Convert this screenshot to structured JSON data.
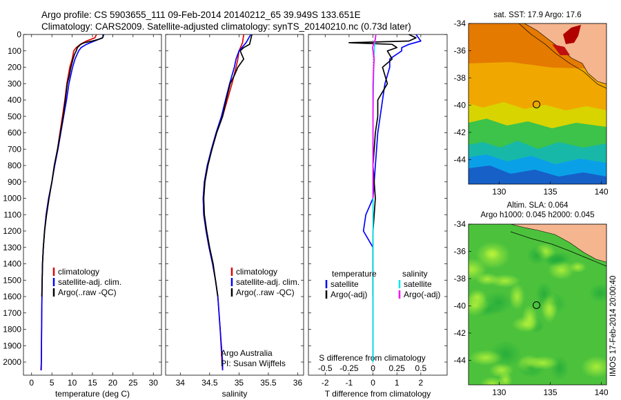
{
  "header": {
    "line1": "Argo profile: CS 5903655_111 09-Feb-2014 20140212_65 39.949S 133.651E",
    "line2": "Climatology: CARS2009. Satellite-adjusted climatology: synTS_20140210.nc (0.73d later)"
  },
  "side_stamp": "IMOS 17-Feb-2014 20:00:40",
  "colors": {
    "clim": "#dd0000",
    "sat": "#0000ff",
    "argo": "#000000",
    "sal_sat": "#00e5ee",
    "sal_argo": "#ff00ff"
  },
  "chart_data": [
    {
      "type": "line",
      "id": "temperature",
      "xlabel": "temperature (deg C)",
      "xlim": [
        -2,
        32
      ],
      "ylim": [
        2080,
        0
      ],
      "xticks": [
        0,
        5,
        10,
        15,
        20,
        25,
        30
      ],
      "yticks": [
        0,
        100,
        200,
        300,
        400,
        500,
        600,
        700,
        800,
        900,
        1000,
        1100,
        1200,
        1300,
        1400,
        1500,
        1600,
        1700,
        1800,
        1900,
        2000
      ],
      "legend": [
        "climatology",
        "satellite-adj. clim.",
        "Argo(..raw -QC)"
      ],
      "series": [
        {
          "name": "climatology",
          "color": "#dd0000",
          "depth": [
            0,
            20,
            40,
            60,
            80,
            100,
            150,
            200,
            300,
            400,
            500,
            600,
            700,
            800,
            900,
            1000,
            1100,
            1200,
            1300,
            1400,
            1500,
            1700,
            2000,
            2050
          ],
          "values": [
            16.0,
            15.6,
            13.5,
            12.0,
            11.0,
            10.4,
            10.0,
            9.4,
            8.7,
            8.2,
            7.6,
            7.0,
            6.4,
            5.6,
            5.0,
            4.2,
            3.6,
            3.2,
            2.9,
            2.7,
            2.6,
            2.5,
            2.4,
            2.4
          ]
        },
        {
          "name": "satellite-adj. clim.",
          "color": "#0000ff",
          "depth": [
            0,
            20,
            40,
            60,
            80,
            100,
            150,
            200,
            300,
            400,
            500,
            600,
            700,
            800,
            900,
            1000,
            1100,
            1200,
            1300,
            1400,
            1500,
            1700,
            2000,
            2050
          ],
          "values": [
            17.8,
            17.5,
            15.5,
            13.5,
            12.2,
            11.6,
            10.7,
            10.1,
            9.2,
            8.6,
            7.9,
            7.2,
            6.5,
            5.7,
            5.0,
            4.2,
            3.6,
            3.2,
            2.9,
            2.7,
            2.6,
            2.5,
            2.4,
            2.3
          ]
        },
        {
          "name": "Argo(..raw -QC)",
          "color": "#000000",
          "depth": [
            0,
            10,
            20,
            30,
            40,
            50,
            60,
            80,
            100,
            120,
            150,
            200,
            250,
            300,
            400,
            500,
            600,
            700,
            800,
            900,
            1000,
            1100,
            1200,
            1300,
            1400,
            1500,
            1600
          ],
          "values": [
            17.6,
            17.6,
            17.5,
            16.5,
            15.0,
            13.0,
            12.1,
            11.3,
            11.0,
            10.6,
            10.2,
            9.7,
            9.3,
            8.8,
            8.3,
            7.8,
            7.1,
            6.4,
            5.6,
            5.0,
            4.3,
            3.7,
            3.2,
            2.9,
            2.7,
            2.6,
            2.5
          ]
        }
      ]
    },
    {
      "type": "line",
      "id": "salinity",
      "xlabel": "salinity",
      "xlim": [
        33.75,
        36.1
      ],
      "ylim": [
        2080,
        0
      ],
      "xticks": [
        34,
        34.5,
        35,
        35.5,
        36
      ],
      "legend": [
        "climatology",
        "satellite-adj. clim.",
        "Argo(..raw -QC)"
      ],
      "annotation": [
        "Argo Australia",
        "PI: Susan Wijffels"
      ],
      "series": [
        {
          "name": "climatology",
          "color": "#dd0000",
          "depth": [
            0,
            50,
            100,
            150,
            200,
            300,
            400,
            500,
            600,
            700,
            800,
            900,
            1000,
            1100,
            1200,
            1300,
            1400,
            1500,
            1600,
            1800,
            2000,
            2050
          ],
          "values": [
            35.08,
            35.06,
            35.0,
            34.98,
            34.95,
            34.88,
            34.8,
            34.72,
            34.62,
            34.54,
            34.46,
            34.41,
            34.39,
            34.4,
            34.44,
            34.49,
            34.55,
            34.6,
            34.64,
            34.68,
            34.71,
            34.72
          ]
        },
        {
          "name": "satellite-adj. clim.",
          "color": "#0000ff",
          "depth": [
            0,
            50,
            100,
            150,
            200,
            300,
            400,
            500,
            600,
            700,
            800,
            900,
            1000,
            1100,
            1200,
            1300,
            1400,
            1500,
            1600,
            1800,
            2000,
            2050
          ],
          "values": [
            35.2,
            35.12,
            35.0,
            34.95,
            34.92,
            34.84,
            34.77,
            34.7,
            34.61,
            34.53,
            34.46,
            34.41,
            34.39,
            34.4,
            34.44,
            34.49,
            34.55,
            34.6,
            34.64,
            34.68,
            34.72,
            34.72
          ]
        },
        {
          "name": "Argo(..raw -QC)",
          "color": "#000000",
          "depth": [
            0,
            30,
            60,
            80,
            100,
            150,
            200,
            250,
            300,
            400,
            500,
            600,
            700,
            800,
            900,
            1000,
            1100,
            1200,
            1300,
            1400,
            1500,
            1600
          ],
          "values": [
            35.22,
            35.2,
            35.18,
            35.08,
            35.02,
            35.08,
            34.98,
            34.92,
            34.85,
            34.78,
            34.72,
            34.62,
            34.54,
            34.47,
            34.42,
            34.4,
            34.41,
            34.45,
            34.5,
            34.56,
            34.6,
            34.64
          ]
        }
      ]
    },
    {
      "type": "line",
      "id": "differences",
      "xlabel": "T difference from climatology",
      "xlabel_top": "S difference from climatology",
      "xlim": [
        -2.7,
        3.1
      ],
      "ylim": [
        2080,
        0
      ],
      "xticks": [
        -2,
        -1,
        0,
        1,
        2
      ],
      "sticks": [
        -0.5,
        -0.25,
        0,
        0.25,
        0.5
      ],
      "s_scale": 4,
      "legend_left_title": "temperature",
      "legend_right_title": "salinity",
      "legend_left": [
        "satellite",
        "Argo(-adj)"
      ],
      "legend_right": [
        "satellite",
        "Argo(-adj)"
      ],
      "series": [
        {
          "name": "temperature satellite",
          "color": "#0000ff",
          "depth": [
            0,
            20,
            40,
            60,
            80,
            100,
            150,
            200,
            300,
            400,
            500,
            600,
            800,
            1000,
            1100,
            1200,
            1300,
            1400,
            1500,
            2000
          ],
          "values": [
            1.8,
            1.9,
            2.0,
            1.5,
            1.2,
            1.2,
            0.7,
            0.7,
            0.5,
            0.4,
            0.3,
            0.2,
            0.1,
            0.0,
            -0.3,
            -0.4,
            0.0,
            0.0,
            0.0,
            0.0
          ]
        },
        {
          "name": "temperature Argo(-adj)",
          "color": "#000000",
          "depth": [
            0,
            20,
            40,
            50,
            60,
            80,
            100,
            150,
            200,
            300,
            400,
            500,
            600,
            800,
            1000,
            1200,
            1400,
            1600
          ],
          "values": [
            1.5,
            1.8,
            1.5,
            -1.0,
            0.8,
            1.0,
            0.6,
            0.8,
            0.4,
            0.6,
            0.2,
            0.2,
            0.1,
            0.0,
            0.1,
            0.0,
            0.0,
            0.0
          ]
        },
        {
          "name": "salinity satellite",
          "color": "#00e5ee",
          "depth": [
            0,
            50,
            100,
            150,
            200,
            300,
            400,
            500,
            700,
            1000,
            1500,
            2000
          ],
          "values": [
            0.12,
            0.07,
            0.05,
            0.04,
            0.03,
            0.02,
            0.01,
            0.0,
            0.0,
            0.0,
            0.0,
            0.0
          ]
        },
        {
          "name": "salinity Argo(-adj)",
          "color": "#ff00ff",
          "depth": [
            0,
            30,
            60,
            80,
            100,
            150,
            200,
            300,
            400,
            500,
            700,
            1000
          ],
          "values": [
            0.12,
            0.1,
            0.02,
            -0.02,
            0.0,
            0.05,
            0.03,
            0.0,
            0.0,
            0.0,
            0.0,
            0.0
          ]
        }
      ]
    },
    {
      "type": "heatmap",
      "id": "sst_map",
      "title": "sat. SST: 17.9 Argo: 17.6",
      "xlim": [
        127,
        140.5
      ],
      "ylim": [
        -45.8,
        -34
      ],
      "xticks": [
        130,
        135,
        140
      ],
      "yticks": [
        -34,
        -36,
        -38,
        -40,
        -42,
        -44
      ],
      "float_position": [
        133.651,
        -39.949
      ]
    },
    {
      "type": "heatmap",
      "id": "sla_map",
      "title": "Altim. SLA: 0.064",
      "subtitle": "Argo h1000: 0.045 h2000: 0.045",
      "xlim": [
        127,
        140.5
      ],
      "ylim": [
        -45.8,
        -34
      ],
      "xticks": [
        130,
        135,
        140
      ],
      "yticks": [
        -34,
        -36,
        -38,
        -40,
        -42,
        -44
      ],
      "float_position": [
        133.651,
        -39.949
      ]
    }
  ]
}
